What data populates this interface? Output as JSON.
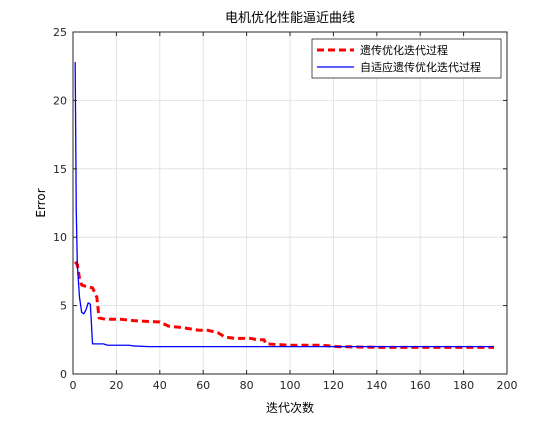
{
  "chart_data": {
    "type": "line",
    "title": "电机优化性能逼近曲线",
    "xlabel": "迭代次数",
    "ylabel": "Error",
    "xlim": [
      0,
      200
    ],
    "ylim": [
      0,
      25
    ],
    "xticks": [
      0,
      20,
      40,
      60,
      80,
      100,
      120,
      140,
      160,
      180,
      200
    ],
    "yticks": [
      0,
      5,
      10,
      15,
      20,
      25
    ],
    "grid": true,
    "legend_position": "top-right",
    "series": [
      {
        "name": "遗传优化迭代过程",
        "color": "#ff0000",
        "style": "dashed",
        "points": [
          [
            1,
            8.2
          ],
          [
            2,
            8.0
          ],
          [
            3,
            7.0
          ],
          [
            4,
            6.5
          ],
          [
            6,
            6.4
          ],
          [
            9,
            6.3
          ],
          [
            11,
            5.6
          ],
          [
            12,
            4.1
          ],
          [
            15,
            4.0
          ],
          [
            22,
            4.0
          ],
          [
            28,
            3.9
          ],
          [
            40,
            3.8
          ],
          [
            44,
            3.5
          ],
          [
            50,
            3.4
          ],
          [
            58,
            3.2
          ],
          [
            62,
            3.2
          ],
          [
            67,
            3.0
          ],
          [
            70,
            2.7
          ],
          [
            75,
            2.6
          ],
          [
            82,
            2.6
          ],
          [
            85,
            2.5
          ],
          [
            88,
            2.5
          ],
          [
            89,
            2.2
          ],
          [
            100,
            2.1
          ],
          [
            115,
            2.1
          ],
          [
            122,
            2.0
          ],
          [
            140,
            1.95
          ],
          [
            194,
            1.95
          ]
        ]
      },
      {
        "name": "自适应遗传优化迭代过程",
        "color": "#0000ff",
        "style": "solid",
        "points": [
          [
            1,
            22.8
          ],
          [
            1.5,
            12.0
          ],
          [
            2,
            8.0
          ],
          [
            3,
            5.6
          ],
          [
            4,
            4.5
          ],
          [
            5,
            4.4
          ],
          [
            6,
            4.7
          ],
          [
            7,
            5.2
          ],
          [
            8,
            5.1
          ],
          [
            9,
            2.2
          ],
          [
            14,
            2.2
          ],
          [
            16,
            2.1
          ],
          [
            26,
            2.1
          ],
          [
            28,
            2.05
          ],
          [
            35,
            2.0
          ],
          [
            194,
            2.0
          ]
        ]
      }
    ]
  }
}
